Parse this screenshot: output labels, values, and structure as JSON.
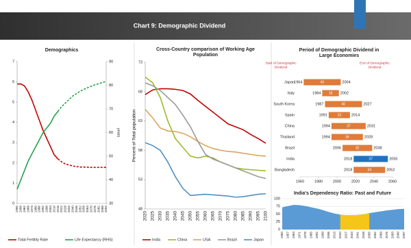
{
  "header": {
    "title": "Chart 9: Demographic Dividend"
  },
  "chart_data": [
    {
      "type": "line",
      "title": "Demographics",
      "categories": [
        1950,
        1956,
        1962,
        1968,
        1974,
        1980,
        1986,
        1992,
        1998,
        2004,
        2010,
        2016,
        2022,
        2028,
        2034,
        2040,
        2046,
        2052,
        2058,
        2064,
        2070,
        2076,
        2082,
        2088,
        2094
      ],
      "series": [
        {
          "name": "Total Fertility Rate",
          "color": "#c00000",
          "dash_from": 2016,
          "values": [
            5.9,
            5.9,
            5.8,
            5.5,
            5.1,
            4.6,
            4.1,
            3.6,
            3.2,
            2.8,
            2.4,
            2.2,
            2.05,
            1.95,
            1.9,
            1.85,
            1.82,
            1.8,
            1.8,
            1.79,
            1.78,
            1.78,
            1.78,
            1.78,
            1.78
          ]
        },
        {
          "name": "Life Expectancy (RHS)",
          "color": "#22a34a",
          "axis": "y2",
          "dash_from": 2016,
          "values": [
            36,
            40,
            44,
            48,
            51,
            54,
            57,
            60,
            62,
            64,
            67,
            69,
            71,
            72.5,
            74,
            75.5,
            76.5,
            77.5,
            78.3,
            79,
            79.6,
            80.2,
            80.7,
            81.2,
            81.6
          ]
        }
      ],
      "ylim": [
        0,
        7
      ],
      "yticks": [
        0,
        1,
        2,
        3,
        4,
        5,
        6,
        7
      ],
      "y2lim": [
        30,
        90
      ],
      "y2ticks": [
        30,
        40,
        50,
        60,
        70,
        80,
        90
      ],
      "y2label": "years",
      "legend": "bottom"
    },
    {
      "type": "line",
      "title": [
        "Cross-Country comparison of Working Age",
        "Population"
      ],
      "categories": [
        2020,
        2025,
        2030,
        2035,
        2040,
        2045,
        2050,
        2055,
        2060,
        2065,
        2070,
        2075,
        2080,
        2085,
        2090,
        2095,
        2100
      ],
      "series": [
        {
          "name": "India",
          "color": "#c00000",
          "values": [
            67.5,
            68.3,
            68.5,
            68.5,
            68.4,
            68.2,
            67.6,
            66.5,
            65.5,
            64.5,
            63.5,
            62.5,
            62,
            61.5,
            60.7,
            60,
            59.2
          ]
        },
        {
          "name": "China",
          "color": "#9bbb2b",
          "values": [
            70.5,
            69.5,
            67,
            63,
            60,
            58.5,
            57,
            56.7,
            57,
            56.7,
            56,
            55.5,
            55,
            54.8,
            54.7,
            54.6,
            54.5
          ]
        },
        {
          "name": "USA",
          "color": "#d9a55a",
          "values": [
            65,
            63.5,
            61.8,
            61.3,
            61.2,
            60.9,
            60.3,
            59.5,
            58.8,
            58.3,
            58,
            57.8,
            57.7,
            57.5,
            57.3,
            57.1,
            57
          ]
        },
        {
          "name": "Brazil",
          "color": "#9a9a9a",
          "values": [
            69.5,
            69,
            68.2,
            67,
            65.8,
            64,
            62,
            59.5,
            57.3,
            56.5,
            56,
            55.5,
            55,
            54.5,
            54,
            53.5,
            53.2
          ]
        },
        {
          "name": "Japan",
          "color": "#4f8fc0",
          "values": [
            59.3,
            58.8,
            58,
            56,
            53.5,
            51.5,
            50.3,
            50.4,
            50.5,
            50.4,
            50.3,
            50.2,
            50,
            50.1,
            50.3,
            50.5,
            50.6
          ]
        }
      ],
      "ylim": [
        48,
        73
      ],
      "yticks": [
        48,
        53,
        58,
        63,
        68,
        73
      ],
      "ylabel": "Percent of Total population",
      "legend": "bottom"
    },
    {
      "type": "floating-bar",
      "title": [
        "Period of Demographic Dividend in",
        "Large Economies"
      ],
      "categories": [
        "Japan",
        "Italy",
        "South Korea",
        "Spain",
        "China",
        "Thailand",
        "Brazil",
        "India",
        "Bangladesh"
      ],
      "starts": [
        1964,
        1984,
        1987,
        1991,
        1994,
        1994,
        2006,
        2018,
        2018
      ],
      "ends": [
        2004,
        2002,
        2027,
        2014,
        2031,
        2028,
        2038,
        2055,
        2052
      ],
      "durations": [
        40,
        18,
        40,
        23,
        37,
        34,
        32,
        37,
        34
      ],
      "colors": [
        "#e07b39",
        "#e07b39",
        "#e07b39",
        "#e07b39",
        "#e07b39",
        "#e07b39",
        "#e07b39",
        "#1f73c0",
        "#e07b39"
      ],
      "xlim": [
        1960,
        2060
      ],
      "xticks": [
        1960,
        1980,
        2000,
        2020,
        2040,
        2060
      ],
      "annotations": [
        [
          "Start of Demographic",
          "Dividend"
        ],
        [
          "End of Demographic",
          "Dividend"
        ]
      ]
    },
    {
      "type": "area",
      "title": "India's Dependency Ratio: Past and Future",
      "categories": [
        1950,
        1957,
        1964,
        1971,
        1978,
        1985,
        1992,
        1999,
        2006,
        2013,
        2020,
        2027,
        2034,
        2041,
        2048,
        2055,
        2062,
        2069,
        2076,
        2083,
        2090,
        2097
      ],
      "values": [
        72,
        76,
        80,
        79,
        76,
        72,
        68,
        63,
        57,
        52,
        48,
        46,
        46,
        47,
        49,
        53,
        56,
        59,
        62,
        64,
        66,
        67
      ],
      "color": "#5b9bd5",
      "highlight": {
        "from": 2020,
        "to": 2055,
        "color": "#f5c518"
      },
      "ylim": [
        0,
        100
      ],
      "yticks": [
        0,
        25,
        50,
        75,
        100
      ],
      "grid": true
    }
  ]
}
